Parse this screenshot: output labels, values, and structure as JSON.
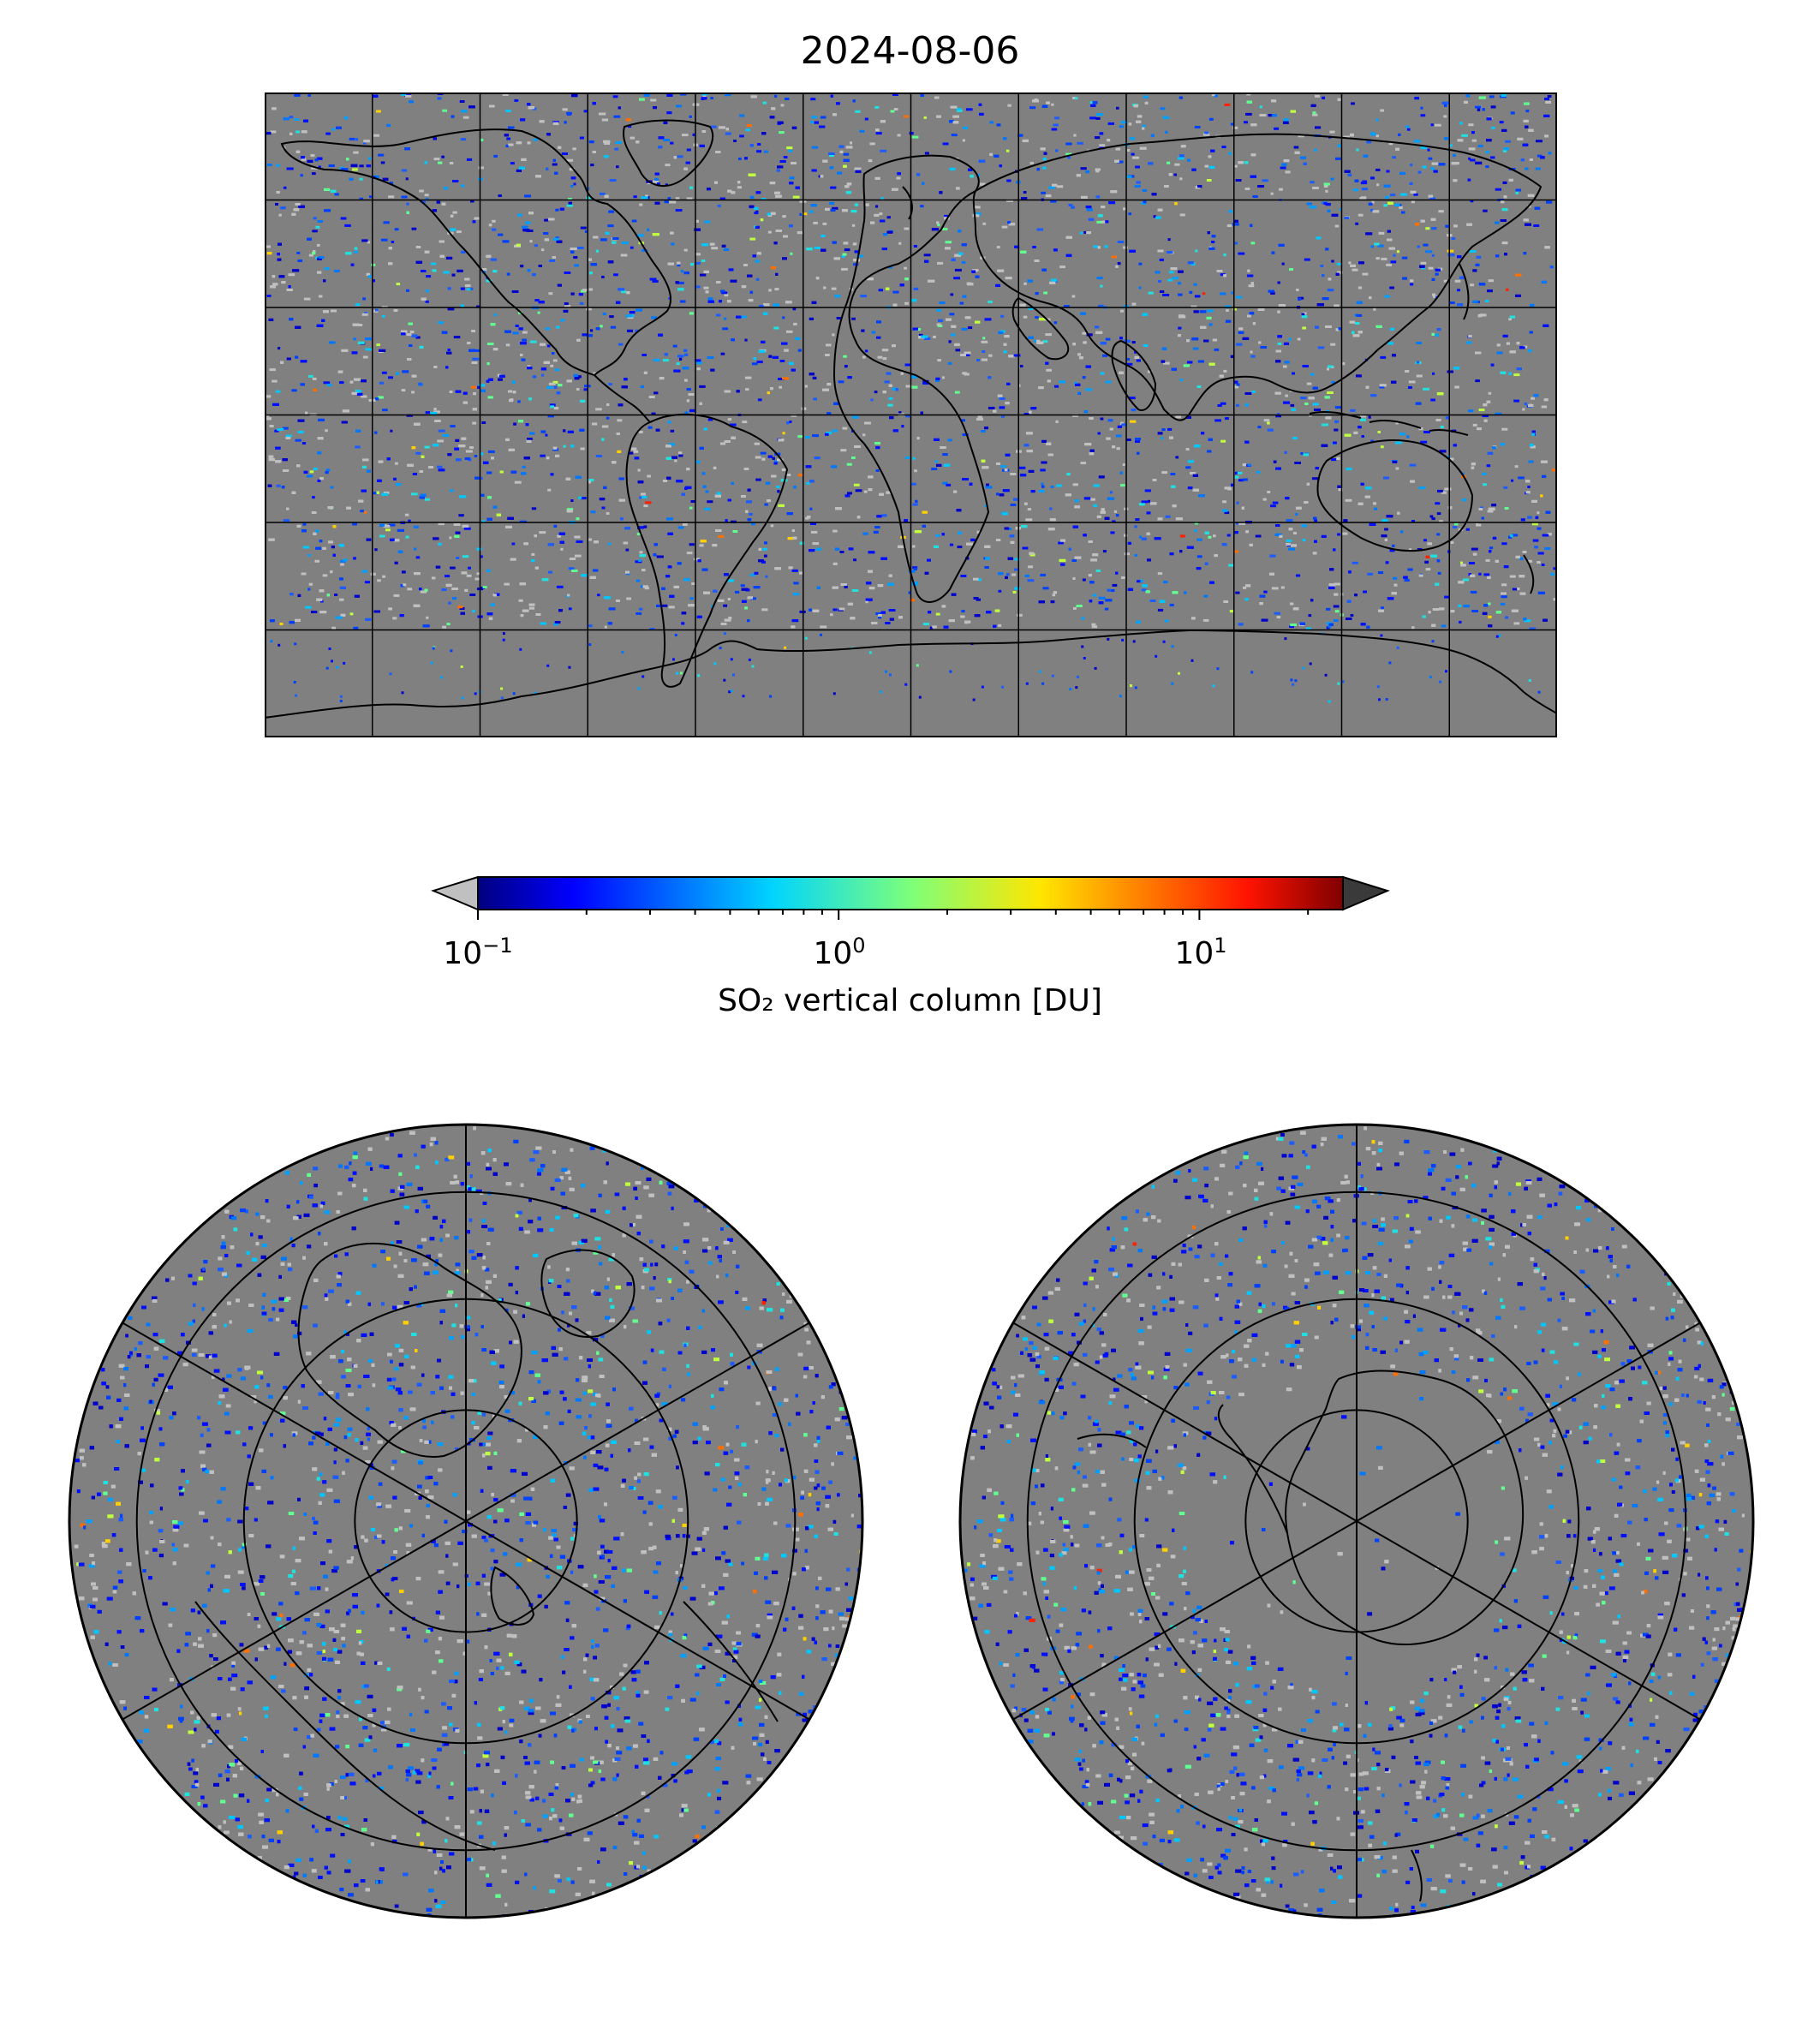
{
  "title": "2024-08-06",
  "colorbar": {
    "label": "SO₂ vertical column [DU]",
    "ticks": [
      {
        "base": "10",
        "exp": "−1",
        "value": 0.1
      },
      {
        "base": "10",
        "exp": "0",
        "value": 1
      },
      {
        "base": "10",
        "exp": "1",
        "value": 10
      }
    ],
    "scale": "log",
    "range": [
      0.1,
      25
    ],
    "colormap": "jet",
    "extend_under_color": "#c0c0c0",
    "extend_over_color": "#3a3a3a"
  },
  "colors": {
    "no_data": "#808080",
    "below_range": "#c0c0c0",
    "background": "#ffffff",
    "coastline": "#000000"
  },
  "maps": {
    "world": {
      "projection": "plate-carree",
      "gridlines": "30 deg meridians, 30 deg parallels"
    },
    "north_pole": {
      "projection": "north-polar-stereographic"
    },
    "south_pole": {
      "projection": "south-polar-stereographic"
    }
  }
}
